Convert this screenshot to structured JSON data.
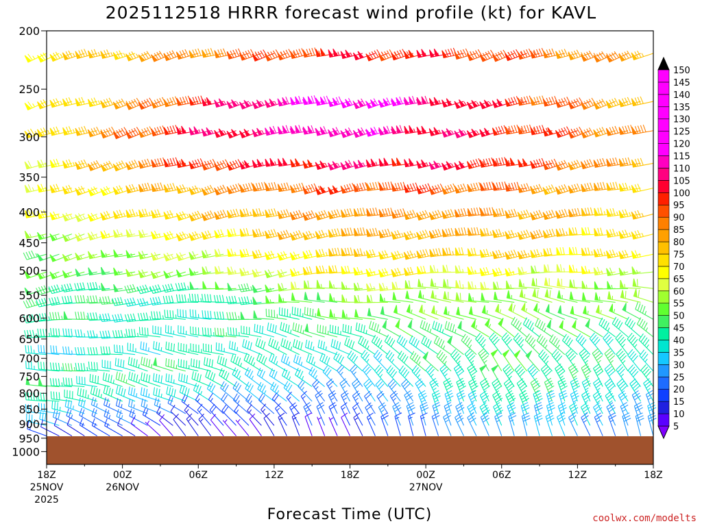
{
  "title": "2025112518 HRRR forecast wind profile (kt) for KAVL",
  "xlabel": "Forecast Time (UTC)",
  "credit": "coolwx.com/modelts",
  "colors": {
    "terrain": "#a0522d",
    "credit": "#cc2222",
    "scale": [
      "#7f00ff",
      "#5a00ff",
      "#2020e0",
      "#1040ff",
      "#1e6cff",
      "#2098ff",
      "#14c8ff",
      "#00e5d0",
      "#00f0a0",
      "#40f060",
      "#60ff30",
      "#a0ff30",
      "#e0ff40",
      "#ffff00",
      "#ffe000",
      "#ffc000",
      "#ffa000",
      "#ff8000",
      "#ff5000",
      "#ff2000",
      "#ff0030",
      "#ff0080",
      "#ff00c0",
      "#ff00ff"
    ]
  },
  "chart_data": {
    "type": "wind barb time-height profile",
    "title": "2025112518 HRRR forecast wind profile (kt) for KAVL",
    "xlabel": "Forecast Time (UTC)",
    "ylabel": "",
    "y_axis": {
      "scale": "log",
      "inverted": true,
      "range": [
        1050,
        200
      ],
      "ticks": [
        200,
        250,
        300,
        350,
        400,
        450,
        500,
        550,
        600,
        650,
        700,
        750,
        800,
        850,
        900,
        950,
        1000
      ]
    },
    "x_axis": {
      "range_hours": [
        0,
        48
      ],
      "ticks": [
        {
          "h": 0,
          "label": "18Z",
          "sub1": "25NOV",
          "sub2": "2025"
        },
        {
          "h": 6,
          "label": "00Z",
          "sub1": "26NOV",
          "sub2": ""
        },
        {
          "h": 12,
          "label": "06Z",
          "sub1": "",
          "sub2": ""
        },
        {
          "h": 18,
          "label": "12Z",
          "sub1": "",
          "sub2": ""
        },
        {
          "h": 24,
          "label": "18Z",
          "sub1": "",
          "sub2": ""
        },
        {
          "h": 30,
          "label": "00Z",
          "sub1": "27NOV",
          "sub2": ""
        },
        {
          "h": 36,
          "label": "06Z",
          "sub1": "",
          "sub2": ""
        },
        {
          "h": 42,
          "label": "12Z",
          "sub1": "",
          "sub2": ""
        },
        {
          "h": 48,
          "label": "18Z",
          "sub1": "",
          "sub2": ""
        }
      ]
    },
    "surface_pressure_hpa": 943,
    "color_scale_kt": [
      5,
      10,
      15,
      20,
      25,
      30,
      35,
      40,
      45,
      50,
      55,
      60,
      65,
      70,
      75,
      80,
      85,
      90,
      95,
      100,
      105,
      110,
      115,
      120,
      125,
      130,
      135,
      140,
      145,
      150
    ],
    "barb_levels_hpa": [
      218,
      262,
      293,
      332,
      365,
      403,
      435,
      470,
      503,
      536,
      565,
      603,
      645,
      690,
      735,
      780,
      825,
      865,
      905,
      942
    ],
    "barb_time_step_hours": 1,
    "wind_speed_kt_by_level": [
      {
        "p": 218,
        "hours": [
          0,
          12,
          24,
          36,
          48
        ],
        "kt": [
          70,
          85,
          100,
          95,
          80
        ]
      },
      {
        "p": 262,
        "hours": [
          0,
          12,
          24,
          36,
          48
        ],
        "kt": [
          65,
          95,
          122,
          100,
          80
        ]
      },
      {
        "p": 293,
        "hours": [
          0,
          12,
          24,
          36,
          48
        ],
        "kt": [
          70,
          100,
          115,
          100,
          85
        ]
      },
      {
        "p": 332,
        "hours": [
          0,
          12,
          24,
          36,
          48
        ],
        "kt": [
          65,
          95,
          105,
          100,
          80
        ]
      },
      {
        "p": 365,
        "hours": [
          0,
          12,
          24,
          36,
          48
        ],
        "kt": [
          65,
          80,
          95,
          90,
          75
        ]
      },
      {
        "p": 403,
        "hours": [
          0,
          12,
          24,
          36,
          48
        ],
        "kt": [
          65,
          75,
          85,
          85,
          75
        ]
      },
      {
        "p": 435,
        "hours": [
          0,
          12,
          24,
          36,
          48
        ],
        "kt": [
          55,
          70,
          80,
          80,
          70
        ]
      },
      {
        "p": 470,
        "hours": [
          0,
          12,
          24,
          36,
          48
        ],
        "kt": [
          50,
          60,
          75,
          75,
          70
        ]
      },
      {
        "p": 503,
        "hours": [
          0,
          12,
          24,
          36,
          48
        ],
        "kt": [
          50,
          55,
          70,
          65,
          60
        ]
      },
      {
        "p": 536,
        "hours": [
          0,
          12,
          24,
          36,
          48
        ],
        "kt": [
          45,
          45,
          60,
          60,
          55
        ]
      },
      {
        "p": 565,
        "hours": [
          0,
          12,
          24,
          36,
          48
        ],
        "kt": [
          45,
          40,
          55,
          55,
          55
        ]
      },
      {
        "p": 603,
        "hours": [
          0,
          12,
          24,
          36,
          48
        ],
        "kt": [
          45,
          40,
          50,
          55,
          50
        ]
      },
      {
        "p": 645,
        "hours": [
          0,
          12,
          24,
          36,
          48
        ],
        "kt": [
          40,
          40,
          45,
          50,
          45
        ]
      },
      {
        "p": 690,
        "hours": [
          0,
          12,
          24,
          36,
          48
        ],
        "kt": [
          35,
          40,
          40,
          45,
          40
        ]
      },
      {
        "p": 735,
        "hours": [
          0,
          12,
          24,
          36,
          48
        ],
        "kt": [
          40,
          45,
          35,
          50,
          40
        ]
      },
      {
        "p": 780,
        "hours": [
          0,
          12,
          24,
          36,
          48
        ],
        "kt": [
          45,
          40,
          30,
          45,
          40
        ]
      },
      {
        "p": 825,
        "hours": [
          0,
          12,
          24,
          36,
          48
        ],
        "kt": [
          45,
          35,
          25,
          45,
          35
        ]
      },
      {
        "p": 865,
        "hours": [
          0,
          12,
          24,
          36,
          48
        ],
        "kt": [
          35,
          20,
          20,
          40,
          30
        ]
      },
      {
        "p": 905,
        "hours": [
          0,
          12,
          24,
          36,
          48
        ],
        "kt": [
          30,
          15,
          20,
          35,
          30
        ]
      },
      {
        "p": 942,
        "hours": [
          0,
          12,
          24,
          36,
          48
        ],
        "kt": [
          15,
          10,
          10,
          30,
          25
        ]
      }
    ],
    "wind_direction_deg_by_level": [
      {
        "p": 218,
        "hours": [
          0,
          24,
          48
        ],
        "deg": [
          250,
          255,
          250
        ]
      },
      {
        "p": 500,
        "hours": [
          0,
          24,
          48
        ],
        "deg": [
          255,
          260,
          265
        ]
      },
      {
        "p": 700,
        "hours": [
          0,
          12,
          24,
          36,
          48
        ],
        "deg": [
          270,
          285,
          300,
          320,
          320
        ]
      },
      {
        "p": 850,
        "hours": [
          0,
          12,
          24,
          36,
          48
        ],
        "deg": [
          280,
          300,
          330,
          340,
          335
        ]
      },
      {
        "p": 942,
        "hours": [
          0,
          12,
          24,
          36,
          48
        ],
        "deg": [
          290,
          320,
          340,
          340,
          340
        ]
      }
    ]
  }
}
